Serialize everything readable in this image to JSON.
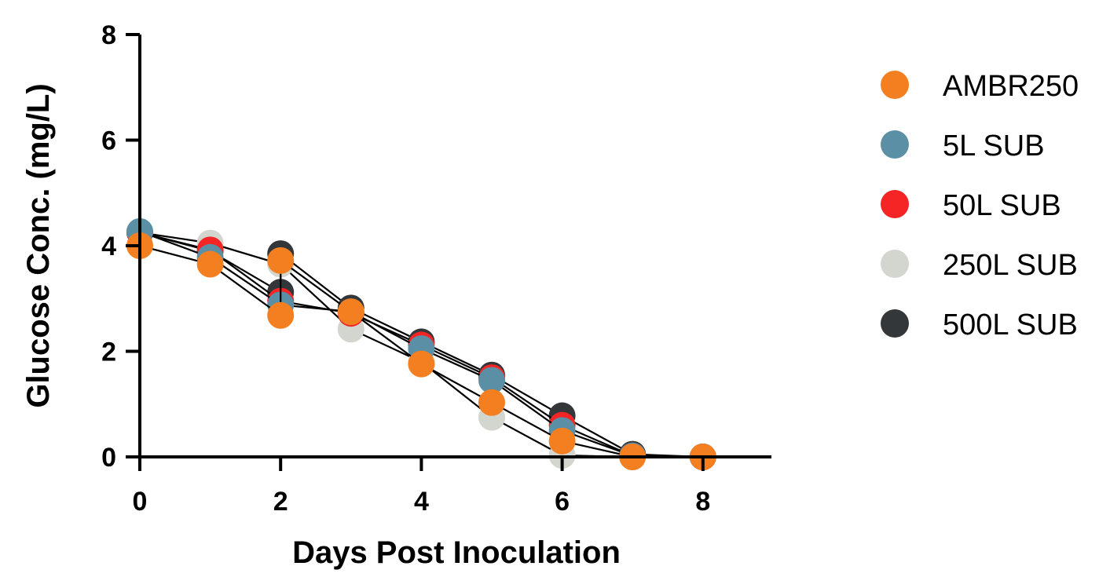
{
  "chart_data": {
    "type": "line",
    "title": "",
    "xlabel": "Days Post Inoculation",
    "ylabel": "Glucose Conc. (mg/L)",
    "xlim": [
      0,
      9
    ],
    "ylim": [
      0,
      8
    ],
    "xticks": [
      0,
      2,
      4,
      6,
      8
    ],
    "yticks": [
      0,
      2,
      4,
      6,
      8
    ],
    "grid": false,
    "legend_position": "right",
    "series": [
      {
        "name": "250L SUB",
        "color": "#d3d5cf",
        "x": [
          0,
          1,
          2,
          3,
          4,
          5,
          6,
          7,
          8
        ],
        "y": [
          4.25,
          4.05,
          3.65,
          2.42,
          1.8,
          0.75,
          0.03,
          0.0,
          0.0
        ]
      },
      {
        "name": "500L SUB",
        "color": "#33373a",
        "x": [
          0,
          1,
          2,
          2,
          3,
          4,
          5,
          6,
          7,
          8
        ],
        "y": [
          4.25,
          3.9,
          3.12,
          3.85,
          2.82,
          2.18,
          1.55,
          0.78,
          0.05,
          0.0
        ]
      },
      {
        "name": "50L SUB",
        "color": "#f42524",
        "x": [
          0,
          1,
          2,
          3,
          4,
          5,
          6,
          7,
          8
        ],
        "y": [
          4.25,
          3.92,
          2.95,
          2.72,
          2.12,
          1.5,
          0.6,
          0.02,
          0.0
        ]
      },
      {
        "name": "5L SUB",
        "color": "#5b8fa5",
        "x": [
          0,
          1,
          2,
          3,
          4,
          5,
          6,
          7,
          8
        ],
        "y": [
          4.27,
          3.78,
          2.88,
          2.75,
          2.05,
          1.45,
          0.5,
          0.02,
          0.0
        ]
      },
      {
        "name": "AMBR250",
        "color": "#f47f20",
        "x": [
          0,
          1,
          2,
          2,
          3,
          4,
          5,
          6,
          7,
          8
        ],
        "y": [
          4.0,
          3.65,
          2.68,
          3.72,
          2.75,
          1.76,
          1.03,
          0.3,
          0.0,
          0.0
        ]
      }
    ],
    "legend": [
      {
        "name": "AMBR250",
        "color": "#f47f20"
      },
      {
        "name": "5L SUB",
        "color": "#5b8fa5"
      },
      {
        "name": "50L SUB",
        "color": "#f42524"
      },
      {
        "name": "250L SUB",
        "color": "#d3d5cf"
      },
      {
        "name": "500L SUB",
        "color": "#33373a"
      }
    ]
  }
}
